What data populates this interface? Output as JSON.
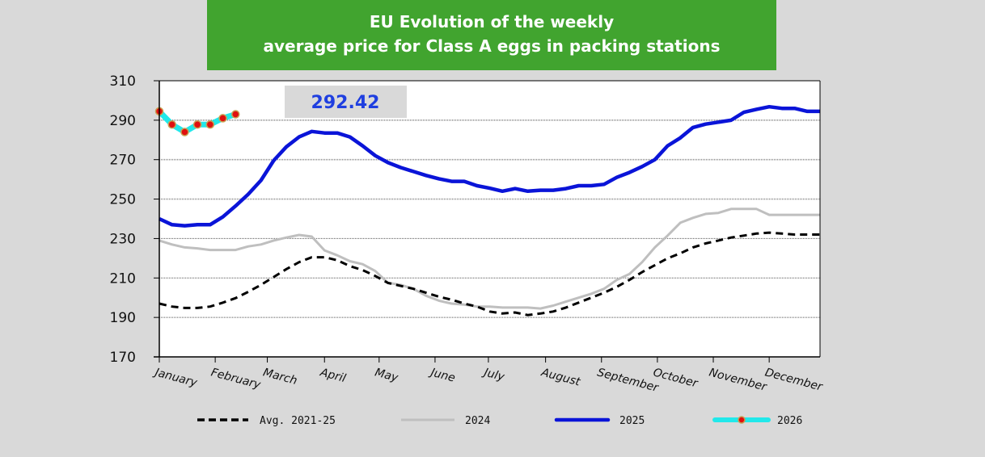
{
  "chart_data": {
    "type": "line",
    "title": [
      "EU Evolution of the weekly",
      "average price for Class A eggs in packing stations"
    ],
    "xlabel": "",
    "ylabel": "",
    "ylim": [
      170,
      310
    ],
    "yticks": [
      170,
      190,
      210,
      230,
      250,
      270,
      290,
      310
    ],
    "xlim": [
      1,
      53
    ],
    "month_labels": [
      "January",
      "February",
      "March",
      "April",
      "May",
      "June",
      "July",
      "August",
      "September",
      "October",
      "November",
      "December"
    ],
    "month_tick_weeks": [
      1,
      5.4,
      9.5,
      14,
      18.3,
      22.7,
      26.9,
      31.4,
      35.8,
      40.2,
      44.6,
      49
    ],
    "grid": true,
    "legend_position": "bottom",
    "annotation": "292.42",
    "colors": {
      "avg": "#000000",
      "y2024": "#bfbfbf",
      "y2025": "#0a14d8",
      "y2026": "#22e8ea",
      "y2026_marker": "#e01010",
      "title_bg": "#41a42f",
      "background": "#d9d9d9"
    },
    "series": [
      {
        "name": "Avg. 2021-25",
        "key": "avg",
        "style": "dashed",
        "x": [
          1,
          2,
          3,
          4,
          5,
          6,
          7,
          8,
          9,
          10,
          11,
          12,
          13,
          14,
          15,
          16,
          17,
          18,
          19,
          20,
          21,
          22,
          23,
          24,
          25,
          26,
          27,
          28,
          29,
          30,
          31,
          32,
          33,
          34,
          35,
          36,
          37,
          38,
          39,
          40,
          41,
          42,
          43,
          44,
          45,
          46,
          47,
          48,
          49,
          50,
          51,
          52,
          53
        ],
        "values": [
          197,
          195.5,
          194.8,
          194.8,
          195.5,
          197.5,
          199.8,
          203,
          206.5,
          210.5,
          214.5,
          218,
          220.5,
          220.5,
          219,
          216,
          214,
          211,
          207.5,
          206,
          204.5,
          202.5,
          200.5,
          199,
          197,
          195.5,
          193,
          192,
          192.5,
          191.2,
          192,
          193,
          195,
          197.5,
          200,
          202.5,
          205.5,
          209,
          213,
          216.5,
          220,
          222.5,
          225.5,
          227.5,
          229,
          230.5,
          231.5,
          232.5,
          233,
          232.5,
          232,
          232,
          232
        ]
      },
      {
        "name": "2024",
        "key": "y2024",
        "style": "solid",
        "x": [
          1,
          2,
          3,
          4,
          5,
          6,
          7,
          8,
          9,
          10,
          11,
          12,
          13,
          14,
          15,
          16,
          17,
          18,
          19,
          20,
          21,
          22,
          23,
          24,
          25,
          26,
          27,
          28,
          29,
          30,
          31,
          32,
          33,
          34,
          35,
          36,
          37,
          38,
          39,
          40,
          41,
          42,
          43,
          44,
          45,
          46,
          47,
          48,
          49,
          50,
          51,
          52,
          53
        ],
        "values": [
          229,
          227,
          225.5,
          225,
          224.2,
          224.2,
          224.2,
          226,
          227,
          229,
          230.5,
          231.8,
          231,
          224,
          221.5,
          218.5,
          217,
          213.5,
          207.5,
          206.5,
          204.5,
          201,
          198.5,
          197,
          196.5,
          195.5,
          195.5,
          195,
          195,
          195,
          194.5,
          196,
          198,
          200,
          202,
          204.5,
          209,
          212,
          218,
          225.5,
          231.5,
          238,
          240.5,
          242.5,
          243,
          245,
          245,
          245,
          242,
          242,
          242,
          242,
          242
        ]
      },
      {
        "name": "2025",
        "key": "y2025",
        "style": "solid",
        "x": [
          1,
          2,
          3,
          4,
          5,
          6,
          7,
          8,
          9,
          10,
          11,
          12,
          13,
          14,
          15,
          16,
          17,
          18,
          19,
          20,
          21,
          22,
          23,
          24,
          25,
          26,
          27,
          28,
          29,
          30,
          31,
          32,
          33,
          34,
          35,
          36,
          37,
          38,
          39,
          40,
          41,
          42,
          43,
          44,
          45,
          46,
          47,
          48,
          49,
          50,
          51,
          52,
          53
        ],
        "values": [
          240,
          237,
          236.5,
          237,
          237,
          241,
          246.5,
          252.5,
          259.5,
          269.5,
          276.5,
          281.5,
          284.3,
          283.5,
          283.5,
          281.5,
          277,
          272,
          268.5,
          266,
          264,
          262,
          260.3,
          259,
          259,
          256.8,
          255.5,
          254,
          255.3,
          254,
          254.5,
          254.5,
          255.3,
          256.8,
          256.8,
          257.5,
          261,
          263.5,
          266.5,
          270,
          277,
          281,
          286.3,
          288,
          289,
          290,
          294,
          295.5,
          296.8,
          296,
          296,
          294.5,
          294.5
        ]
      },
      {
        "name": "2026",
        "key": "y2026",
        "style": "solid-markers",
        "x": [
          1,
          2,
          3,
          4,
          5,
          6,
          7
        ],
        "values": [
          294.5,
          287.8,
          284,
          287.8,
          287.8,
          291,
          293
        ]
      }
    ]
  }
}
